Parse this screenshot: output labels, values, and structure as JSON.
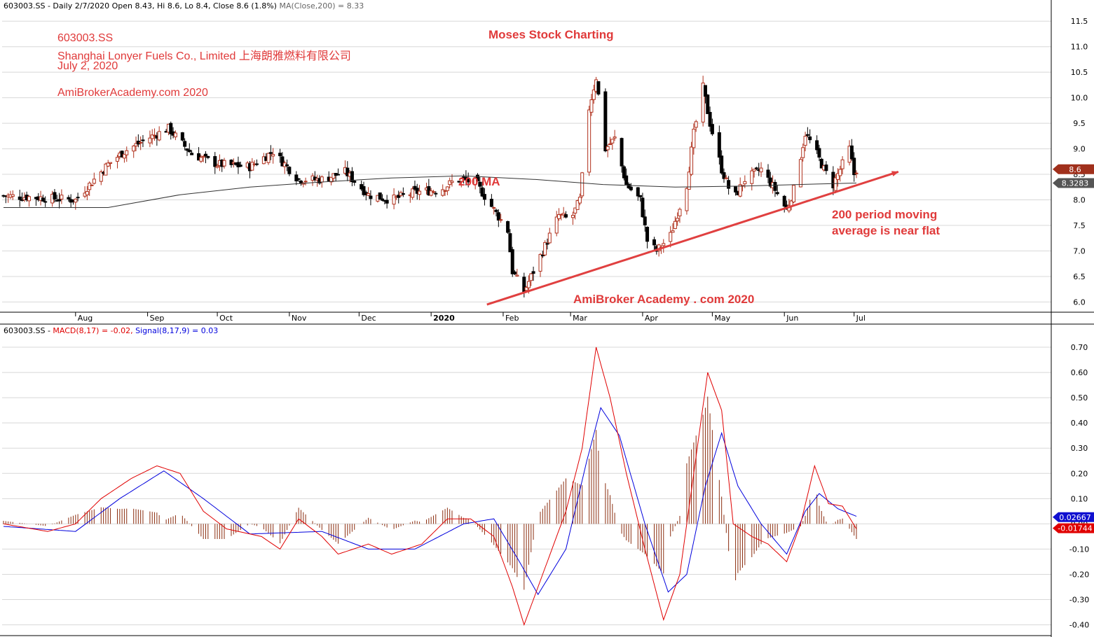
{
  "price_header": {
    "symbol": "603003.SS",
    "info": "- Daily 2/7/2020 Open 8.43, Hi 8.6, Lo 8.4, Close 8.6 (1.8%)",
    "ma": "MA(Close,200) = 8.33"
  },
  "macd_header": {
    "symbol": "603003.SS",
    "macd": "MACD(8,17) = -0.02,",
    "signal": "Signal(8,17,9) = 0.03"
  },
  "annotations": {
    "ticker": "603003.SS",
    "company": "Shanghai Lonyer Fuels Co., Limited 上海朗雅燃料有限公司",
    "date": "July 2, 2020",
    "site": "AmiBrokerAcademy.com  2020",
    "title": "Moses Stock Charting",
    "ma_label": "200 MA",
    "note_line1": "200 period moving",
    "note_line2": "average is near flat",
    "footer": "AmiBroker Academy . com 2020"
  },
  "colors": {
    "annotation": "#e03a3a",
    "up_candle": "#b0301c",
    "down_candle": "#000000",
    "ma_line": "#333333",
    "macd_line": "#e00000",
    "signal_line": "#0000dd",
    "histogram": "#8b2e10",
    "trendline": "#e04040"
  },
  "chart_data": [
    {
      "type": "candlestick",
      "title": "603003.SS - Daily",
      "y_axis_ticks": [
        6.0,
        6.5,
        7.0,
        7.5,
        8.0,
        8.5,
        9.0,
        9.5,
        10.0,
        10.5,
        11.0,
        11.5
      ],
      "ylim": [
        5.8,
        11.75
      ],
      "x_axis_labels": [
        "Aug",
        "Sep",
        "Oct",
        "Nov",
        "Dec",
        "2020",
        "Feb",
        "Mar",
        "Apr",
        "May",
        "Jun",
        "Jul"
      ],
      "grid": "horizontal",
      "last_close_marker": "8.6",
      "ma200_marker": "8.3283",
      "close_path": [
        [
          "2019-07-01",
          8.08
        ],
        [
          "2019-07-15",
          8.05
        ],
        [
          "2019-08-01",
          8.0
        ],
        [
          "2019-08-15",
          8.7
        ],
        [
          "2019-08-22",
          8.95
        ],
        [
          "2019-09-01",
          9.2
        ],
        [
          "2019-09-10",
          9.4
        ],
        [
          "2019-09-20",
          8.9
        ],
        [
          "2019-10-01",
          8.7
        ],
        [
          "2019-10-15",
          8.65
        ],
        [
          "2019-10-25",
          8.95
        ],
        [
          "2019-11-05",
          8.4
        ],
        [
          "2019-11-15",
          8.4
        ],
        [
          "2019-11-25",
          8.55
        ],
        [
          "2019-12-05",
          8.1
        ],
        [
          "2019-12-15",
          8.0
        ],
        [
          "2019-12-25",
          8.15
        ],
        [
          "2020-01-05",
          8.2
        ],
        [
          "2020-01-12",
          8.4
        ],
        [
          "2020-01-20",
          8.35
        ],
        [
          "2020-02-03",
          7.4
        ],
        [
          "2020-02-05",
          6.6
        ],
        [
          "2020-02-10",
          6.2
        ],
        [
          "2020-02-18",
          7.0
        ],
        [
          "2020-02-25",
          7.7
        ],
        [
          "2020-03-01",
          7.6
        ],
        [
          "2020-03-05",
          8.0
        ],
        [
          "2020-03-09",
          9.8
        ],
        [
          "2020-03-12",
          10.4
        ],
        [
          "2020-03-16",
          9.0
        ],
        [
          "2020-03-20",
          9.2
        ],
        [
          "2020-03-25",
          8.3
        ],
        [
          "2020-03-31",
          8.0
        ],
        [
          "2020-04-03",
          7.2
        ],
        [
          "2020-04-07",
          7.0
        ],
        [
          "2020-04-13",
          7.3
        ],
        [
          "2020-04-20",
          8.3
        ],
        [
          "2020-04-23",
          9.3
        ],
        [
          "2020-04-27",
          10.2
        ],
        [
          "2020-04-30",
          9.5
        ],
        [
          "2020-05-05",
          8.6
        ],
        [
          "2020-05-10",
          8.0
        ],
        [
          "2020-05-15",
          8.4
        ],
        [
          "2020-05-22",
          8.6
        ],
        [
          "2020-05-28",
          8.2
        ],
        [
          "2020-06-02",
          7.8
        ],
        [
          "2020-06-05",
          8.2
        ],
        [
          "2020-06-10",
          9.3
        ],
        [
          "2020-06-14",
          9.0
        ],
        [
          "2020-06-18",
          8.6
        ],
        [
          "2020-06-22",
          8.3
        ],
        [
          "2020-06-26",
          8.7
        ],
        [
          "2020-06-29",
          9.0
        ],
        [
          "2020-07-01",
          8.5
        ],
        [
          "2020-07-02",
          8.6
        ]
      ],
      "ma200_path": [
        [
          "2019-07-01",
          7.85
        ],
        [
          "2019-08-15",
          7.85
        ],
        [
          "2019-09-15",
          8.1
        ],
        [
          "2019-10-15",
          8.25
        ],
        [
          "2019-11-15",
          8.35
        ],
        [
          "2019-12-15",
          8.43
        ],
        [
          "2020-01-15",
          8.47
        ],
        [
          "2020-02-15",
          8.4
        ],
        [
          "2020-03-15",
          8.3
        ],
        [
          "2020-04-15",
          8.25
        ],
        [
          "2020-05-15",
          8.27
        ],
        [
          "2020-06-15",
          8.31
        ],
        [
          "2020-07-02",
          8.33
        ]
      ],
      "trendline": [
        [
          "2020-01-25",
          5.95
        ],
        [
          "2020-07-20",
          8.55
        ]
      ]
    },
    {
      "type": "line",
      "title": "603003.SS - MACD(8,17) = -0.02, Signal(8,17,9) = 0.03",
      "y_axis_ticks": [
        -0.4,
        -0.3,
        -0.2,
        -0.1,
        0.0,
        0.1,
        0.2,
        0.3,
        0.4,
        0.5,
        0.6,
        0.7
      ],
      "ylim": [
        -0.44,
        0.75
      ],
      "signal_marker": "0.02667",
      "macd_marker": "-0.01744",
      "series": [
        {
          "name": "MACD(8,17)",
          "points": [
            [
              "2019-07-01",
              0.0
            ],
            [
              "2019-07-20",
              -0.03
            ],
            [
              "2019-08-01",
              0.0
            ],
            [
              "2019-08-12",
              0.1
            ],
            [
              "2019-08-25",
              0.18
            ],
            [
              "2019-09-05",
              0.23
            ],
            [
              "2019-09-15",
              0.2
            ],
            [
              "2019-09-25",
              0.05
            ],
            [
              "2019-10-05",
              -0.02
            ],
            [
              "2019-10-20",
              -0.05
            ],
            [
              "2019-10-28",
              -0.1
            ],
            [
              "2019-11-05",
              0.02
            ],
            [
              "2019-11-15",
              -0.05
            ],
            [
              "2019-11-22",
              -0.12
            ],
            [
              "2019-12-05",
              -0.08
            ],
            [
              "2019-12-15",
              -0.12
            ],
            [
              "2019-12-28",
              -0.08
            ],
            [
              "2020-01-08",
              0.02
            ],
            [
              "2020-01-18",
              0.02
            ],
            [
              "2020-01-28",
              -0.05
            ],
            [
              "2020-02-05",
              -0.25
            ],
            [
              "2020-02-10",
              -0.4
            ],
            [
              "2020-02-18",
              -0.2
            ],
            [
              "2020-02-28",
              0.05
            ],
            [
              "2020-03-06",
              0.3
            ],
            [
              "2020-03-12",
              0.7
            ],
            [
              "2020-03-18",
              0.5
            ],
            [
              "2020-03-25",
              0.2
            ],
            [
              "2020-04-02",
              -0.1
            ],
            [
              "2020-04-10",
              -0.38
            ],
            [
              "2020-04-17",
              -0.2
            ],
            [
              "2020-04-23",
              0.2
            ],
            [
              "2020-04-29",
              0.6
            ],
            [
              "2020-05-05",
              0.45
            ],
            [
              "2020-05-10",
              0.0
            ],
            [
              "2020-05-18",
              -0.05
            ],
            [
              "2020-05-25",
              -0.08
            ],
            [
              "2020-06-02",
              -0.15
            ],
            [
              "2020-06-08",
              0.0
            ],
            [
              "2020-06-14",
              0.23
            ],
            [
              "2020-06-20",
              0.08
            ],
            [
              "2020-06-26",
              0.07
            ],
            [
              "2020-07-02",
              -0.02
            ]
          ]
        },
        {
          "name": "Signal(8,17,9)",
          "points": [
            [
              "2019-07-01",
              -0.01
            ],
            [
              "2019-08-01",
              -0.03
            ],
            [
              "2019-08-20",
              0.1
            ],
            [
              "2019-09-08",
              0.21
            ],
            [
              "2019-09-25",
              0.1
            ],
            [
              "2019-10-15",
              -0.04
            ],
            [
              "2019-11-15",
              -0.03
            ],
            [
              "2019-12-05",
              -0.1
            ],
            [
              "2019-12-25",
              -0.1
            ],
            [
              "2020-01-15",
              0.0
            ],
            [
              "2020-01-28",
              0.02
            ],
            [
              "2020-02-08",
              -0.15
            ],
            [
              "2020-02-16",
              -0.28
            ],
            [
              "2020-02-28",
              -0.1
            ],
            [
              "2020-03-08",
              0.25
            ],
            [
              "2020-03-14",
              0.46
            ],
            [
              "2020-03-22",
              0.35
            ],
            [
              "2020-04-02",
              0.0
            ],
            [
              "2020-04-12",
              -0.27
            ],
            [
              "2020-04-20",
              -0.2
            ],
            [
              "2020-04-28",
              0.15
            ],
            [
              "2020-05-05",
              0.36
            ],
            [
              "2020-05-12",
              0.15
            ],
            [
              "2020-05-22",
              0.0
            ],
            [
              "2020-06-02",
              -0.12
            ],
            [
              "2020-06-10",
              0.05
            ],
            [
              "2020-06-16",
              0.12
            ],
            [
              "2020-06-24",
              0.06
            ],
            [
              "2020-07-02",
              0.03
            ]
          ]
        }
      ]
    }
  ]
}
